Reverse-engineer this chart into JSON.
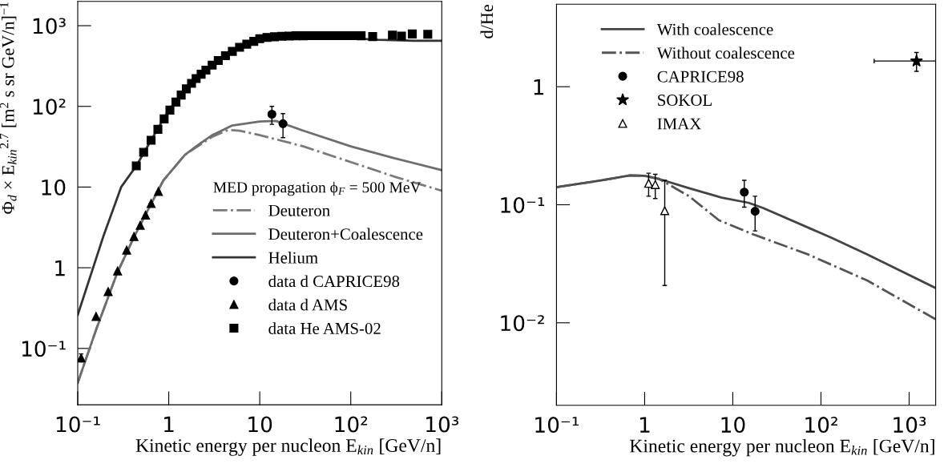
{
  "chart_data": [
    {
      "type": "line",
      "xlabel": "Kinetic energy per nucleon E$_{kin}$ [GeV/n]",
      "ylabel": "Φ$_{d}$ × E$_{kin}$$^{2.7}$ [m$^{2}$ s sr GeV/n]$^{−1}$",
      "legend_title": "MED propagation ϕ$_{F}$ = 500 MeV",
      "log": "xy",
      "xlim": [
        0.1,
        1000
      ],
      "ylim": [
        0.02,
        2000
      ],
      "xticks": [
        {
          "value": 0.1,
          "label": "10⁻¹"
        },
        1,
        10,
        {
          "value": 100,
          "label": "10²"
        },
        {
          "value": 1000,
          "label": "10³"
        }
      ],
      "yticks": [
        {
          "value": 0.1,
          "label": "10⁻¹"
        },
        1,
        10,
        {
          "value": 100,
          "label": "10²"
        },
        {
          "value": 1000,
          "label": "10³"
        }
      ],
      "grid": false,
      "legend": "right",
      "series": [
        {
          "name": "Deuteron",
          "type": "line",
          "line_style": "dashdot",
          "color": "#7a7a7a",
          "x": [
            0.1,
            0.159,
            0.27,
            0.415,
            0.64,
            0.87,
            1.5,
            2,
            3,
            4.5,
            6,
            10,
            30,
            100,
            300,
            1000
          ],
          "values": [
            0.0375,
            0.17,
            0.85,
            2.4,
            6.2,
            12,
            25,
            31,
            42,
            51,
            50,
            44,
            32,
            20.4,
            13.5,
            9.0
          ]
        },
        {
          "name": "Deuteron+Coalescence",
          "type": "line",
          "line_style": "solid",
          "color": "#6e6e6e",
          "x": [
            0.1,
            0.159,
            0.27,
            0.415,
            0.64,
            0.87,
            1.5,
            2,
            3,
            5,
            10,
            15,
            30,
            100,
            300,
            1000
          ],
          "values": [
            0.0375,
            0.17,
            0.85,
            2.4,
            6.2,
            12,
            25,
            32,
            44,
            58,
            65,
            66,
            50,
            32,
            22.8,
            16.2
          ]
        },
        {
          "name": "Helium",
          "type": "line",
          "line_style": "solid",
          "color": "#333333",
          "x": [
            0.1,
            0.19,
            0.3,
            0.44,
            0.64,
            1,
            1.56,
            2.56,
            4.2,
            7.2,
            10,
            20,
            40,
            100,
            200,
            500,
            1000
          ],
          "values": [
            0.26,
            2.4,
            10,
            18.3,
            38,
            90,
            165,
            281,
            440,
            620,
            690,
            720,
            720,
            700,
            670,
            650,
            650
          ]
        },
        {
          "name": "data d CAPRICE98",
          "type": "scatter",
          "marker": "circle",
          "color": "#000000",
          "x": [
            13.6,
            18
          ],
          "values": [
            80,
            61
          ],
          "errors": [
            [
              60,
              100
            ],
            [
              41,
              81.5
            ]
          ]
        },
        {
          "name": "data d AMS",
          "type": "scatter",
          "marker": "triangle",
          "color": "#000000",
          "x": [
            0.109,
            0.159,
            0.216,
            0.274,
            0.345,
            0.415,
            0.486,
            0.556,
            0.64,
            0.77
          ],
          "values": [
            0.076,
            0.249,
            0.506,
            0.91,
            1.65,
            2.43,
            3.35,
            4.5,
            6.25,
            8.8
          ],
          "errors": [
            [
              0.068,
              0.0855
            ],
            null,
            null,
            null,
            null,
            null,
            null,
            null,
            null,
            null
          ]
        },
        {
          "name": "data He AMS-02",
          "type": "scatter",
          "marker": "square",
          "color": "#000000",
          "x": [
            0.44,
            0.53,
            0.64,
            0.76,
            0.89,
            1.03,
            1.2,
            1.37,
            1.56,
            1.78,
            2.0,
            2.27,
            2.56,
            3.0,
            3.5,
            4.2,
            5.0,
            6.0,
            7.2,
            8.6,
            10,
            12,
            14.5,
            17.5,
            21,
            25,
            30,
            36,
            43,
            52,
            62,
            75,
            90,
            108,
            130,
            174,
            287,
            361,
            474,
            702
          ],
          "values": [
            18.3,
            27,
            38,
            52,
            70,
            90,
            113,
            138,
            165,
            193,
            221,
            250,
            281,
            325,
            370,
            425,
            480,
            540,
            590,
            640,
            690,
            715,
            730,
            740,
            745,
            750,
            750,
            752,
            752,
            752,
            752,
            752,
            752,
            752,
            750,
            733,
            763,
            745,
            790,
            782
          ]
        }
      ]
    },
    {
      "type": "line",
      "xlabel": "Kinetic energy per nucleon E$_{kin}$ [GeV/n]",
      "ylabel": "d/He",
      "log": "xy",
      "xlim": [
        0.1,
        2000
      ],
      "ylim": [
        0.002,
        5
      ],
      "xticks": [
        {
          "value": 0.1,
          "label": "10⁻¹"
        },
        1,
        10,
        {
          "value": 100,
          "label": "10²"
        },
        {
          "value": 1000,
          "label": "10³"
        }
      ],
      "yticks": [
        {
          "value": 0.01,
          "label": "10⁻²"
        },
        {
          "value": 0.1,
          "label": "10⁻¹"
        },
        1
      ],
      "grid": false,
      "legend": "top left",
      "series": [
        {
          "name": "With coalescence",
          "type": "line",
          "line_style": "solid",
          "color": "#444444",
          "x": [
            0.1,
            0.31,
            0.68,
            1.0,
            1.47,
            3.2,
            7.5,
            15,
            22,
            132,
            335,
            2000
          ],
          "values": [
            0.141,
            0.16,
            0.177,
            0.176,
            0.165,
            0.138,
            0.115,
            0.104,
            0.094,
            0.0525,
            0.038,
            0.0197
          ]
        },
        {
          "name": "Without coalescence",
          "type": "line",
          "line_style": "dashdot",
          "color": "#555555",
          "x": [
            0.1,
            0.31,
            0.68,
            1.0,
            1.47,
            3.2,
            6.95,
            17.6,
            71,
            335,
            2000
          ],
          "values": [
            0.141,
            0.16,
            0.177,
            0.176,
            0.165,
            0.118,
            0.074,
            0.0556,
            0.038,
            0.0228,
            0.0107
          ]
        },
        {
          "name": "CAPRICE98",
          "type": "scatter",
          "marker": "circle",
          "color": "#000000",
          "x": [
            13.5,
            17.9
          ],
          "values": [
            0.128,
            0.088
          ],
          "errors": [
            [
              0.0955,
              0.161
            ],
            [
              0.06,
              0.118
            ]
          ]
        },
        {
          "name": "SOKOL",
          "type": "scatter",
          "marker": "star",
          "color": "#000000",
          "x": [
            1213
          ],
          "values": [
            1.65
          ],
          "errors": [
            [
              1.35,
              1.95
            ]
          ],
          "xerrors": [
            [
              401,
              2000
            ]
          ]
        },
        {
          "name": "IMAX",
          "type": "scatter",
          "marker": "triangle",
          "color": "#ffffff",
          "x": [
            1.11,
            1.32,
            1.69
          ],
          "values": [
            0.152,
            0.148,
            0.089
          ],
          "errors": [
            [
              0.118,
              0.185
            ],
            [
              0.113,
              0.181
            ],
            [
              0.0207,
              0.161
            ]
          ]
        }
      ]
    }
  ]
}
